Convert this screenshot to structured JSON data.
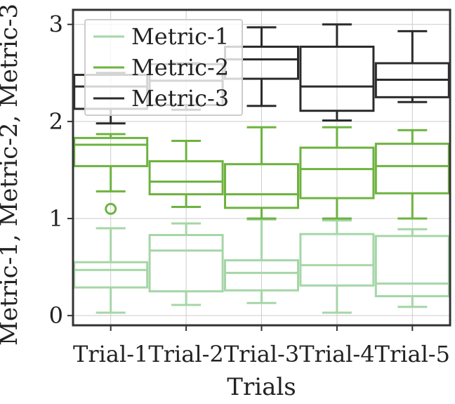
{
  "chart_data": {
    "type": "box",
    "xlabel": "Trials",
    "ylabel": "Metric-1, Metric-2, Metric-3",
    "categories": [
      "Trial-1",
      "Trial-2",
      "Trial-3",
      "Trial-4",
      "Trial-5"
    ],
    "ylim": [
      -0.1,
      3.15
    ],
    "yticks": [
      0,
      1,
      2,
      3
    ],
    "grid": true,
    "legend_position": "top-left",
    "series": [
      {
        "name": "Metric-1",
        "color": "#a5d6a7",
        "boxes": [
          {
            "whislo": 0.03,
            "q1": 0.29,
            "med": 0.47,
            "q3": 0.55,
            "whishi": 0.9,
            "fliers": []
          },
          {
            "whislo": 0.11,
            "q1": 0.25,
            "med": 0.67,
            "q3": 0.83,
            "whishi": 0.95,
            "fliers": []
          },
          {
            "whislo": 0.13,
            "q1": 0.26,
            "med": 0.44,
            "q3": 0.57,
            "whishi": 0.99,
            "fliers": []
          },
          {
            "whislo": 0.03,
            "q1": 0.31,
            "med": 0.52,
            "q3": 0.84,
            "whishi": 0.98,
            "fliers": []
          },
          {
            "whislo": 0.09,
            "q1": 0.2,
            "med": 0.33,
            "q3": 0.82,
            "whishi": 0.89,
            "fliers": []
          }
        ]
      },
      {
        "name": "Metric-2",
        "color": "#6db33f",
        "boxes": [
          {
            "whislo": 1.28,
            "q1": 1.54,
            "med": 1.76,
            "q3": 1.83,
            "whishi": 1.87,
            "fliers": [
              1.1
            ]
          },
          {
            "whislo": 1.12,
            "q1": 1.25,
            "med": 1.38,
            "q3": 1.59,
            "whishi": 1.8,
            "fliers": []
          },
          {
            "whislo": 1.0,
            "q1": 1.11,
            "med": 1.25,
            "q3": 1.56,
            "whishi": 1.94,
            "fliers": []
          },
          {
            "whislo": 1.0,
            "q1": 1.21,
            "med": 1.51,
            "q3": 1.73,
            "whishi": 1.94,
            "fliers": []
          },
          {
            "whislo": 1.0,
            "q1": 1.26,
            "med": 1.54,
            "q3": 1.77,
            "whishi": 1.91,
            "fliers": []
          }
        ]
      },
      {
        "name": "Metric-3",
        "color": "#2b2b2b",
        "boxes": [
          {
            "whislo": 1.98,
            "q1": 2.13,
            "med": 2.36,
            "q3": 2.48,
            "whishi": 2.5,
            "fliers": []
          },
          {
            "whislo": 2.12,
            "q1": 2.17,
            "med": 2.42,
            "q3": 2.59,
            "whishi": 2.6,
            "fliers": []
          },
          {
            "whislo": 2.16,
            "q1": 2.44,
            "med": 2.64,
            "q3": 2.77,
            "whishi": 2.97,
            "fliers": []
          },
          {
            "whislo": 2.01,
            "q1": 2.11,
            "med": 2.36,
            "q3": 2.77,
            "whishi": 3.0,
            "fliers": []
          },
          {
            "whislo": 2.2,
            "q1": 2.25,
            "med": 2.43,
            "q3": 2.6,
            "whishi": 2.93,
            "fliers": []
          }
        ]
      }
    ]
  }
}
